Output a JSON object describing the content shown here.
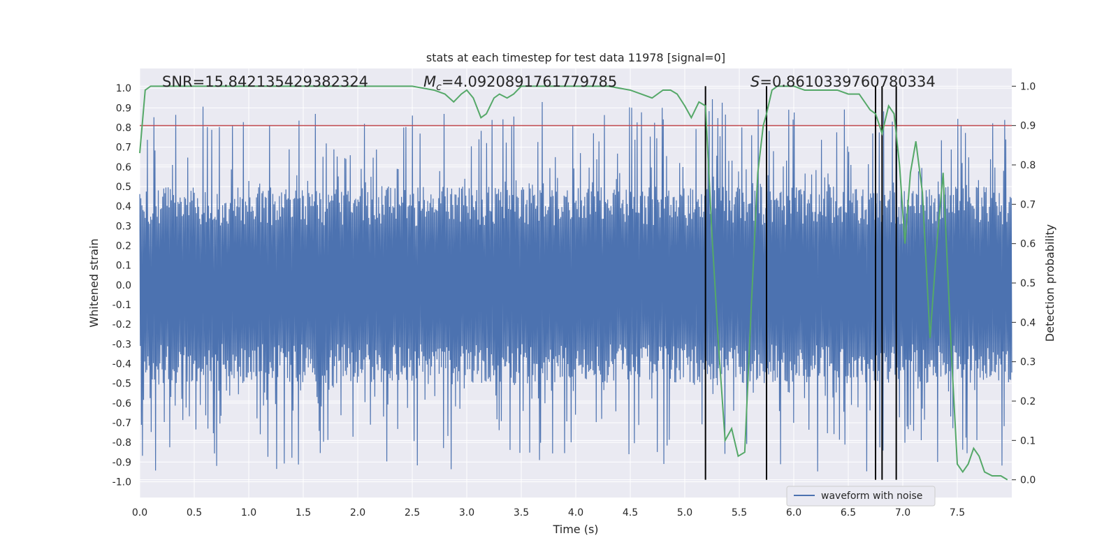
{
  "chart_data": {
    "type": "line",
    "title": "stats at each timestep for test data 11978 [signal=0]",
    "xlabel": "Time (s)",
    "ylabel_left": "Whitened strain",
    "ylabel_right": "Detection probability",
    "xlim": [
      0,
      8
    ],
    "ylim_left": [
      -1.08,
      1.1
    ],
    "ylim_right": [
      -0.045,
      1.045
    ],
    "x_ticks": [
      "0.0",
      "0.5",
      "1.0",
      "1.5",
      "2.0",
      "2.5",
      "3.0",
      "3.5",
      "4.0",
      "4.5",
      "5.0",
      "5.5",
      "6.0",
      "6.5",
      "7.0",
      "7.5"
    ],
    "y_ticks_left": [
      "1.0",
      "0.9",
      "0.8",
      "0.7",
      "0.6",
      "0.5",
      "0.4",
      "0.3",
      "0.2",
      "0.1",
      "0.0",
      "-0.1",
      "-0.2",
      "-0.3",
      "-0.4",
      "-0.5",
      "-0.6",
      "-0.7",
      "-0.8",
      "-0.9",
      "-1.0"
    ],
    "y_ticks_right": [
      "1.0",
      "0.9",
      "0.8",
      "0.7",
      "0.6",
      "0.5",
      "0.4",
      "0.3",
      "0.2",
      "0.1",
      "0.0"
    ],
    "annotations": {
      "snr": "SNR=15.842135429382324",
      "mc_symbol": "M",
      "mc_subscript": "c",
      "mc_value": "=4.0920891761779785",
      "s_symbol": "S",
      "s_value": "=0.8610339760780334"
    },
    "threshold": {
      "value": 0.9,
      "axis": "right",
      "color": "#c44e52"
    },
    "vertical_lines": [
      5.19,
      5.75,
      6.75,
      6.81,
      6.94
    ],
    "legend": {
      "label": "waveform with noise",
      "location": "lower-right"
    },
    "series": [
      {
        "name": "waveform with noise",
        "axis": "left",
        "color": "#4c72b0",
        "noise_model": {
          "typical_amplitude": 0.4,
          "peak_amplitude": 0.95,
          "samples": 1600
        }
      },
      {
        "name": "detection probability",
        "axis": "right",
        "color": "#55a868",
        "x": [
          0.0,
          0.05,
          0.1,
          0.5,
          1.0,
          1.5,
          2.0,
          2.5,
          2.7,
          2.8,
          2.88,
          2.95,
          3.0,
          3.06,
          3.13,
          3.18,
          3.25,
          3.3,
          3.37,
          3.43,
          3.5,
          3.57,
          3.6,
          3.7,
          4.0,
          4.3,
          4.5,
          4.6,
          4.7,
          4.8,
          4.87,
          4.93,
          5.0,
          5.06,
          5.13,
          5.19,
          5.25,
          5.31,
          5.37,
          5.43,
          5.49,
          5.55,
          5.61,
          5.67,
          5.72,
          5.75,
          5.8,
          5.85,
          5.9,
          6.0,
          6.1,
          6.2,
          6.3,
          6.4,
          6.5,
          6.6,
          6.7,
          6.75,
          6.81,
          6.87,
          6.92,
          6.97,
          7.02,
          7.07,
          7.12,
          7.18,
          7.25,
          7.31,
          7.37,
          7.45,
          7.5,
          7.55,
          7.6,
          7.65,
          7.7,
          7.75,
          7.82,
          7.9,
          7.96
        ],
        "y": [
          0.83,
          0.99,
          1.0,
          1.0,
          1.0,
          1.0,
          1.0,
          1.0,
          0.99,
          0.98,
          0.96,
          0.98,
          0.99,
          0.97,
          0.92,
          0.93,
          0.97,
          0.98,
          0.97,
          0.98,
          1.0,
          1.0,
          1.0,
          1.0,
          1.0,
          1.0,
          0.99,
          0.98,
          0.97,
          0.99,
          0.99,
          0.98,
          0.95,
          0.92,
          0.96,
          0.95,
          0.62,
          0.34,
          0.1,
          0.13,
          0.06,
          0.07,
          0.44,
          0.78,
          0.9,
          0.93,
          0.99,
          1.0,
          1.0,
          1.0,
          0.99,
          0.99,
          0.99,
          0.99,
          0.98,
          0.98,
          0.94,
          0.93,
          0.88,
          0.95,
          0.93,
          0.8,
          0.6,
          0.78,
          0.86,
          0.73,
          0.36,
          0.59,
          0.78,
          0.3,
          0.04,
          0.02,
          0.04,
          0.08,
          0.06,
          0.02,
          0.01,
          0.01,
          0.0
        ]
      }
    ]
  }
}
